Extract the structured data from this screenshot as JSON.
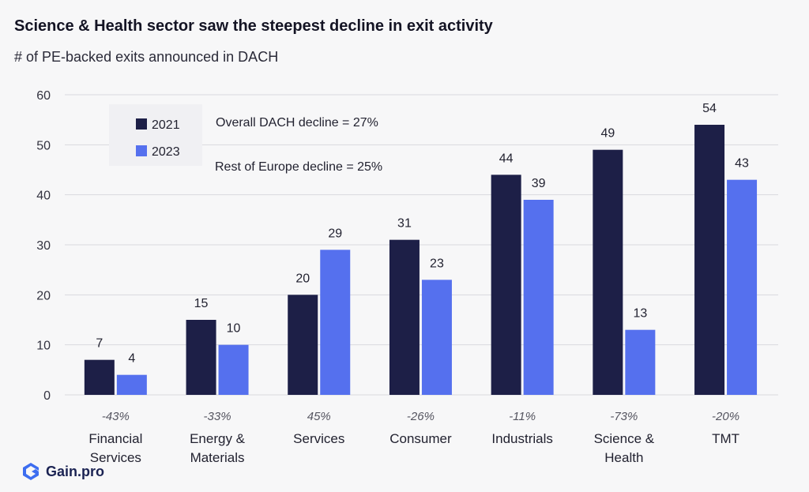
{
  "title": "Science & Health sector saw the steepest decline in exit activity",
  "subtitle": "# of PE-backed exits announced in DACH",
  "brand": "Gain.pro",
  "colors": {
    "series_2021": "#1d1f47",
    "series_2023": "#5570ee",
    "grid": "#d9d9de"
  },
  "annotations": [
    "Overall DACH decline  =  27%",
    "Rest of Europe decline = 25%"
  ],
  "chart_data": {
    "type": "bar",
    "title": "Science & Health sector saw the steepest decline in exit activity",
    "subtitle": "# of PE-backed exits announced in DACH",
    "xlabel": "",
    "ylabel": "",
    "ylim": [
      0,
      60
    ],
    "yticks": [
      0,
      10,
      20,
      30,
      40,
      50,
      60
    ],
    "grid": true,
    "legend": "top-left",
    "categories": [
      [
        "Financial",
        "Services"
      ],
      [
        "Energy &",
        "Materials"
      ],
      [
        "Services"
      ],
      [
        "Consumer"
      ],
      [
        "Industrials"
      ],
      [
        "Science &",
        "Health"
      ],
      [
        "TMT"
      ]
    ],
    "change_labels": [
      "-43%",
      "-33%",
      "45%",
      "-26%",
      "-11%",
      "-73%",
      "-20%"
    ],
    "series": [
      {
        "name": "2021",
        "values": [
          7,
          15,
          20,
          31,
          44,
          49,
          54
        ]
      },
      {
        "name": "2023",
        "values": [
          4,
          10,
          29,
          23,
          39,
          13,
          43
        ]
      }
    ]
  }
}
